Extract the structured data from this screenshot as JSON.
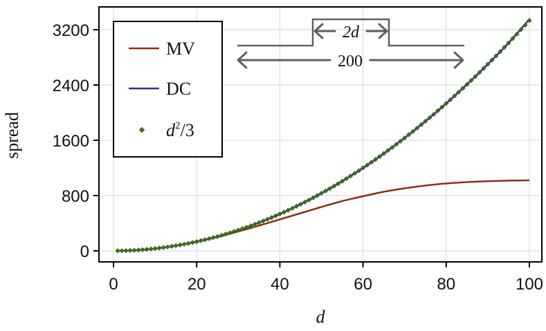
{
  "chart_data": {
    "type": "line",
    "title": "",
    "xlabel": "d",
    "ylabel": "spread",
    "xlim": [
      -3.5,
      103
    ],
    "ylim": [
      -160,
      3530
    ],
    "xticks": [
      0,
      20,
      40,
      60,
      80,
      100
    ],
    "yticks": [
      0,
      800,
      1600,
      2400,
      3200
    ],
    "grid": true,
    "legend_position": "top-left",
    "series": [
      {
        "name": "MV",
        "color": "#8b2e16",
        "style": "line",
        "x": [
          1,
          5,
          10,
          15,
          20,
          25,
          30,
          35,
          40,
          45,
          50,
          55,
          60,
          65,
          70,
          75,
          80,
          85,
          90,
          95,
          100
        ],
        "y": [
          0,
          8,
          33,
          75,
          130,
          200,
          280,
          365,
          455,
          545,
          635,
          720,
          790,
          855,
          905,
          945,
          975,
          995,
          1008,
          1016,
          1020
        ]
      },
      {
        "name": "DC",
        "color": "#3a2a8f",
        "style": "line",
        "x": [
          1,
          5,
          10,
          15,
          20,
          25,
          30,
          35,
          40,
          45,
          50,
          55,
          60,
          65,
          70,
          75,
          80,
          85,
          90,
          95,
          100
        ],
        "y": [
          0,
          8,
          33,
          75,
          133,
          208,
          300,
          408,
          533,
          675,
          833,
          1008,
          1200,
          1408,
          1633,
          1875,
          2133,
          2408,
          2700,
          3008,
          3350
        ]
      },
      {
        "name": "d²/3",
        "color": "#3d6b1e",
        "style": "markers",
        "formula": "d^2/3",
        "x_start": 1,
        "x_end": 100,
        "x_step": 1
      }
    ],
    "legend": {
      "entries": [
        {
          "label": "MV",
          "kind": "line",
          "color": "#8b2e16"
        },
        {
          "label": "DC",
          "kind": "line",
          "color": "#3a2a8f"
        },
        {
          "label_base": "d",
          "label_sup": "2",
          "label_rest": "/3",
          "kind": "marker",
          "color": "#3d6b1e"
        }
      ]
    },
    "annotations": {
      "inner_span_label": "2d",
      "outer_span_label": "200",
      "color": "#606060"
    }
  }
}
